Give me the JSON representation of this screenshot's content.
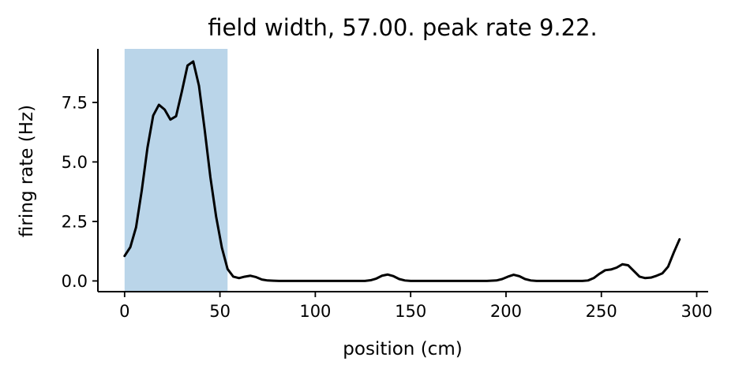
{
  "chart_data": {
    "type": "line",
    "title": "field width, 57.00. peak rate 9.22.",
    "xlabel": "position (cm)",
    "ylabel": "firing rate (Hz)",
    "xlim": [
      -14,
      306
    ],
    "ylim": [
      -0.45,
      9.75
    ],
    "xticks": [
      0,
      50,
      100,
      150,
      200,
      250,
      300
    ],
    "xtick_labels": [
      "0",
      "50",
      "100",
      "150",
      "200",
      "250",
      "300"
    ],
    "yticks": [
      0.0,
      2.5,
      5.0,
      7.5
    ],
    "ytick_labels": [
      "0.0",
      "2.5",
      "5.0",
      "7.5"
    ],
    "grid": false,
    "highlight_region": {
      "x_start": 0,
      "x_end": 54,
      "color": "#bad5e9"
    },
    "line_color": "#000000",
    "series": [
      {
        "name": "firing rate",
        "x": [
          0,
          3,
          6,
          9,
          12,
          15,
          18,
          21,
          24,
          27,
          30,
          33,
          36,
          39,
          42,
          45,
          48,
          51,
          54,
          57,
          60,
          63,
          66,
          69,
          72,
          75,
          78,
          81,
          84,
          87,
          90,
          100,
          110,
          120,
          126,
          129,
          132,
          135,
          138,
          141,
          144,
          147,
          150,
          155,
          160,
          170,
          180,
          190,
          195,
          198,
          201,
          204,
          207,
          210,
          213,
          216,
          219,
          222,
          230,
          240,
          243,
          246,
          249,
          252,
          255,
          258,
          261,
          264,
          267,
          270,
          273,
          276,
          279,
          282,
          285,
          288,
          291
        ],
        "y": [
          1.05,
          1.42,
          2.25,
          3.8,
          5.6,
          6.95,
          7.4,
          7.2,
          6.78,
          6.92,
          7.95,
          9.05,
          9.22,
          8.2,
          6.35,
          4.35,
          2.7,
          1.4,
          0.5,
          0.18,
          0.12,
          0.18,
          0.22,
          0.16,
          0.06,
          0.02,
          0.01,
          0.0,
          0.0,
          0.0,
          0.0,
          0.0,
          0.0,
          0.0,
          0.0,
          0.03,
          0.1,
          0.22,
          0.27,
          0.2,
          0.08,
          0.02,
          0.0,
          0.0,
          0.0,
          0.0,
          0.0,
          0.0,
          0.02,
          0.08,
          0.18,
          0.26,
          0.2,
          0.08,
          0.02,
          0.0,
          0.0,
          0.0,
          0.0,
          0.0,
          0.02,
          0.12,
          0.3,
          0.45,
          0.48,
          0.56,
          0.7,
          0.66,
          0.42,
          0.18,
          0.12,
          0.14,
          0.22,
          0.32,
          0.6,
          1.2,
          1.75
        ]
      }
    ]
  }
}
